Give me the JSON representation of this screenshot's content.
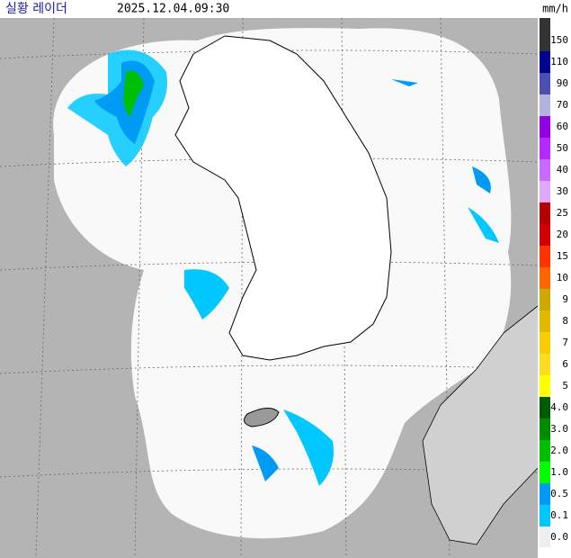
{
  "header": {
    "title": "실황 레이더",
    "time": "2025.12.04.09:30",
    "unit": "mm/h"
  },
  "legend": {
    "items": [
      {
        "label": "150",
        "color": "#333333"
      },
      {
        "label": "110",
        "color": "#000390"
      },
      {
        "label": "90",
        "color": "#4c4eb1"
      },
      {
        "label": "70",
        "color": "#b3b4de"
      },
      {
        "label": "60",
        "color": "#9300e4"
      },
      {
        "label": "50",
        "color": "#b329ff"
      },
      {
        "label": "40",
        "color": "#c969ff"
      },
      {
        "label": "30",
        "color": "#e0a9ff"
      },
      {
        "label": "25",
        "color": "#b40000"
      },
      {
        "label": "20",
        "color": "#d20000"
      },
      {
        "label": "15",
        "color": "#ff3300"
      },
      {
        "label": "10",
        "color": "#ff6600"
      },
      {
        "label": "9",
        "color": "#ccaa00"
      },
      {
        "label": "8",
        "color": "#e0b900"
      },
      {
        "label": "7",
        "color": "#f9cd00"
      },
      {
        "label": "6",
        "color": "#ffdc1f"
      },
      {
        "label": "5",
        "color": "#ffff00"
      },
      {
        "label": "4.0",
        "color": "#005a00"
      },
      {
        "label": "3.0",
        "color": "#008c00"
      },
      {
        "label": "2.0",
        "color": "#00be00"
      },
      {
        "label": "1.0",
        "color": "#00ff00"
      },
      {
        "label": "0.5",
        "color": "#009bf5"
      },
      {
        "label": "0.1",
        "color": "#00c8ff"
      },
      {
        "label": "0.0",
        "color": "#eeeeee"
      }
    ]
  }
}
